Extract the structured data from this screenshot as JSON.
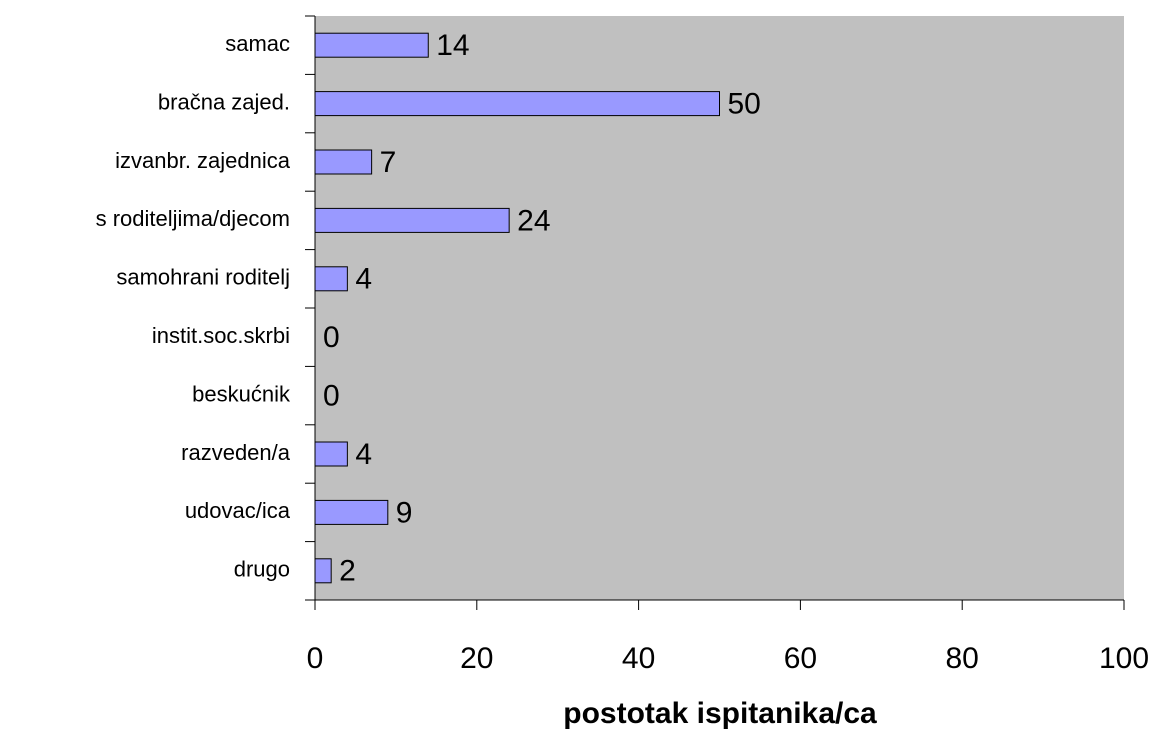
{
  "chart_data": {
    "type": "bar",
    "orientation": "horizontal",
    "categories": [
      "samac",
      "bračna zajed.",
      "izvanbr. zajednica",
      "s roditeljima/djecom",
      "samohrani roditelj",
      "instit.soc.skrbi",
      "beskućnik",
      "razveden/a",
      "udovac/ica",
      "drugo"
    ],
    "values": [
      14,
      50,
      7,
      24,
      4,
      0,
      0,
      4,
      9,
      2
    ],
    "color": "#9999ff",
    "plot_background": "#c0c0c0",
    "x_label": "postotak ispitanika/ca",
    "xlim": [
      0,
      100
    ],
    "xticks": [
      0,
      20,
      40,
      60,
      80,
      100
    ],
    "grid": false
  }
}
